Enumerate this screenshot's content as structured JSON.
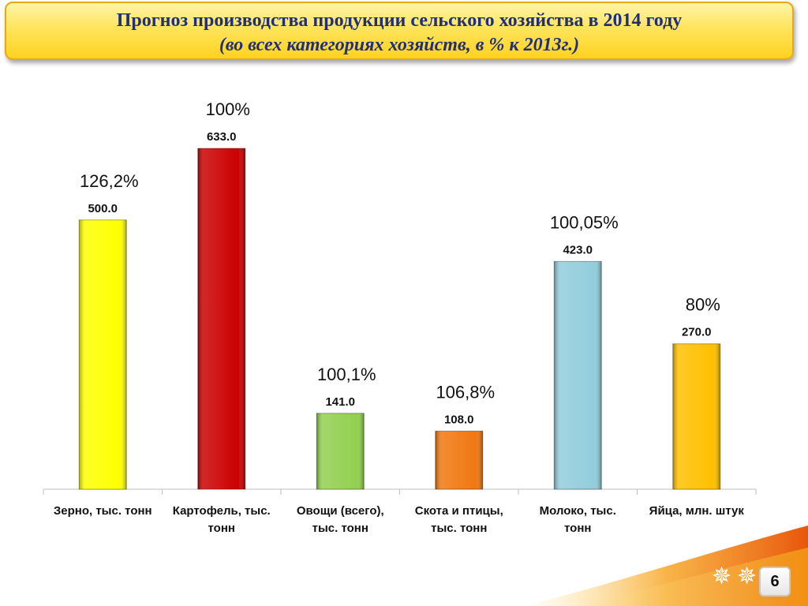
{
  "header": {
    "title": "Прогноз производства продукции сельского хозяйства в 2014 году",
    "subtitle": "(во всех категориях хозяйств, в % к 2013г.)"
  },
  "page_number": "6",
  "colors": {
    "title_text": "#1f2f7a",
    "title_bg": "#ffe45c",
    "title_border": "#e9a816"
  },
  "chart_data": {
    "type": "bar",
    "categories": [
      [
        "Зерно, тыс. тонн"
      ],
      [
        "Картофель, тыс.",
        "тонн"
      ],
      [
        "Овощи (всего),",
        "тыс. тонн"
      ],
      [
        "Скота и птицы,",
        "тыс. тонн"
      ],
      [
        "Молоко, тыс.",
        "тонн"
      ],
      [
        "Яйца, млн. штук"
      ]
    ],
    "values": [
      500.0,
      633.0,
      141.0,
      108.0,
      423.0,
      270.0
    ],
    "value_labels": [
      "500.0",
      "633.0",
      "141.0",
      "108.0",
      "423.0",
      "270.0"
    ],
    "percent_labels": [
      "126,2%",
      "100%",
      "100,1%",
      "106,8%",
      "100,05%",
      "80%"
    ],
    "bar_colors": [
      "#ffff00",
      "#cc0000",
      "#92d050",
      "#f07810",
      "#92cddc",
      "#ffc000"
    ],
    "ylim": [
      0,
      700
    ],
    "grid": false,
    "legend": "none"
  }
}
